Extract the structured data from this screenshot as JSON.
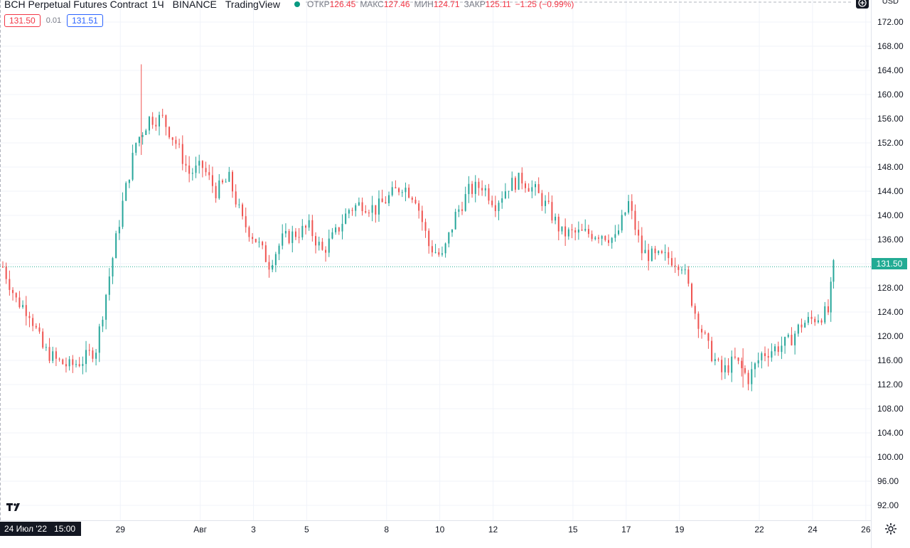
{
  "header": {
    "symbol": "BCH Perpetual Futures Contract",
    "interval": "1Ч",
    "exchange": "BINANCE",
    "provider": "TradingView",
    "open_label": "ОТКР",
    "open_value": "126.45",
    "high_label": "МАКС",
    "high_value": "127.46",
    "low_label": "МИН",
    "low_value": "124.71",
    "close_label": "ЗАКР",
    "close_value": "125.11",
    "change": "−1.25 (−0.99%)"
  },
  "order": {
    "sell": "131.50",
    "spread": "0.01",
    "buy": "131.51"
  },
  "currency": "USD",
  "last_price": "131.50",
  "date_badge": {
    "date": "24 Июл '22",
    "time": "15:00"
  },
  "colors": {
    "up": "#26a69a",
    "down": "#ef5350",
    "last": "#22ab94",
    "grid": "#f0f3fa"
  },
  "chart_data": {
    "type": "candlestick",
    "interval": "1h",
    "ylim": [
      90,
      174
    ],
    "y_ticks": [
      "92.00",
      "96.00",
      "100.00",
      "104.00",
      "108.00",
      "112.00",
      "116.00",
      "120.00",
      "124.00",
      "128.00",
      "132.00",
      "136.00",
      "140.00",
      "144.00",
      "148.00",
      "152.00",
      "156.00",
      "160.00",
      "164.00",
      "168.00",
      "172.00"
    ],
    "x_ticks": [
      {
        "label": "29",
        "day": 5
      },
      {
        "label": "Авг",
        "day": 8
      },
      {
        "label": "3",
        "day": 10
      },
      {
        "label": "5",
        "day": 12
      },
      {
        "label": "8",
        "day": 15
      },
      {
        "label": "10",
        "day": 17
      },
      {
        "label": "12",
        "day": 19
      },
      {
        "label": "15",
        "day": 22
      },
      {
        "label": "17",
        "day": 24
      },
      {
        "label": "19",
        "day": 26
      },
      {
        "label": "22",
        "day": 29
      },
      {
        "label": "24",
        "day": 31
      },
      {
        "label": "26",
        "day": 33
      }
    ],
    "close_path": [
      [
        0,
        131.5
      ],
      [
        0.5,
        126
      ],
      [
        1,
        124
      ],
      [
        1.5,
        118
      ],
      [
        2,
        116
      ],
      [
        2.5,
        115
      ],
      [
        3,
        116
      ],
      [
        3.5,
        118
      ],
      [
        4,
        130
      ],
      [
        4.5,
        142
      ],
      [
        5,
        152
      ],
      [
        5.5,
        156
      ],
      [
        6,
        156
      ],
      [
        6.5,
        152
      ],
      [
        7,
        147
      ],
      [
        7.5,
        148
      ],
      [
        8,
        144
      ],
      [
        8.5,
        146
      ],
      [
        9,
        139
      ],
      [
        9.5,
        136
      ],
      [
        10,
        132
      ],
      [
        10.5,
        136
      ],
      [
        11,
        137
      ],
      [
        11.5,
        138
      ],
      [
        12,
        134
      ],
      [
        12.5,
        137
      ],
      [
        13,
        141
      ],
      [
        13.5,
        142
      ],
      [
        14,
        141
      ],
      [
        14.5,
        143
      ],
      [
        15,
        145
      ],
      [
        15.5,
        143
      ],
      [
        16,
        135
      ],
      [
        16.5,
        133
      ],
      [
        17,
        140
      ],
      [
        17.5,
        144
      ],
      [
        18,
        145
      ],
      [
        18.5,
        142
      ],
      [
        19,
        145
      ],
      [
        19.5,
        146
      ],
      [
        20,
        144
      ],
      [
        20.5,
        141
      ],
      [
        21,
        137
      ],
      [
        21.5,
        137
      ],
      [
        22,
        137
      ],
      [
        22.5,
        137
      ],
      [
        23,
        136
      ],
      [
        23.5,
        142
      ],
      [
        24,
        134
      ],
      [
        24.5,
        133
      ],
      [
        25,
        133
      ],
      [
        25.5,
        132
      ],
      [
        26,
        124
      ],
      [
        26.5,
        118
      ],
      [
        27,
        114
      ],
      [
        27.5,
        116
      ],
      [
        28,
        113
      ],
      [
        28.5,
        117
      ],
      [
        29,
        118
      ],
      [
        29.5,
        119
      ],
      [
        30,
        122
      ],
      [
        30.5,
        123
      ],
      [
        31,
        124
      ],
      [
        31.2,
        131.5
      ]
    ],
    "annotated_extremes": {
      "high": 165,
      "low": 111.5
    },
    "last": 131.5
  }
}
